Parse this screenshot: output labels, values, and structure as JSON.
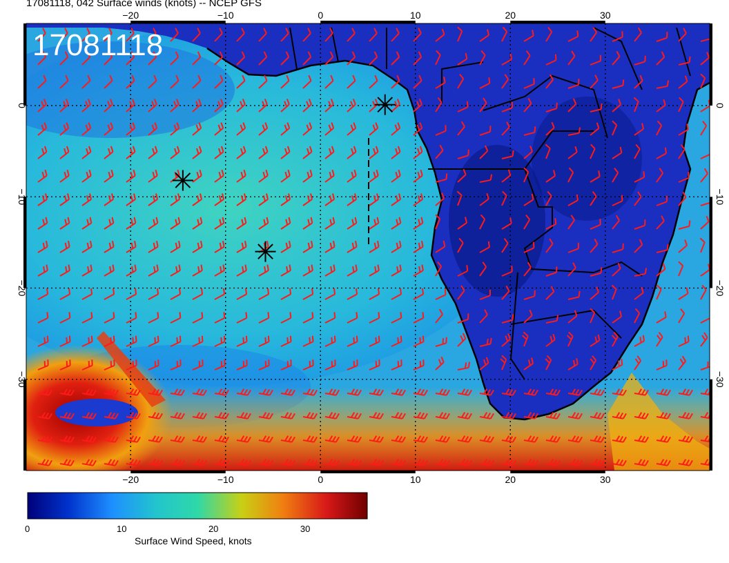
{
  "header": {
    "title": "17081118, 042 Surface winds (knots) -- NCEP GFS"
  },
  "map": {
    "overlay_label": "17081118",
    "lon_ticks": [
      "−20",
      "−10",
      "0",
      "10",
      "20",
      "30"
    ],
    "lat_ticks": [
      "0",
      "−10",
      "−20",
      "−30"
    ],
    "lon_range": [
      -31,
      41
    ],
    "lat_range": [
      -40,
      9
    ]
  },
  "colorbar": {
    "title": "Surface Wind Speed, knots",
    "ticks": [
      "0",
      "10",
      "20",
      "30"
    ],
    "range": [
      0,
      37
    ],
    "colors": [
      "#00007a",
      "#0033cc",
      "#1e90ff",
      "#22c5cc",
      "#2fd8a8",
      "#c8d014",
      "#f08010",
      "#d81818",
      "#700000"
    ]
  },
  "markers": [
    {
      "name": "star",
      "lon": -14.5,
      "lat": -8.2
    },
    {
      "name": "star",
      "lon": -5.8,
      "lat": -16.0
    },
    {
      "name": "star",
      "lon": 6.8,
      "lat": 0.1
    }
  ],
  "barb_color": "#ff1a1a",
  "land_color": "#1a2fbf",
  "ocean_color": "#2ab8d8"
}
